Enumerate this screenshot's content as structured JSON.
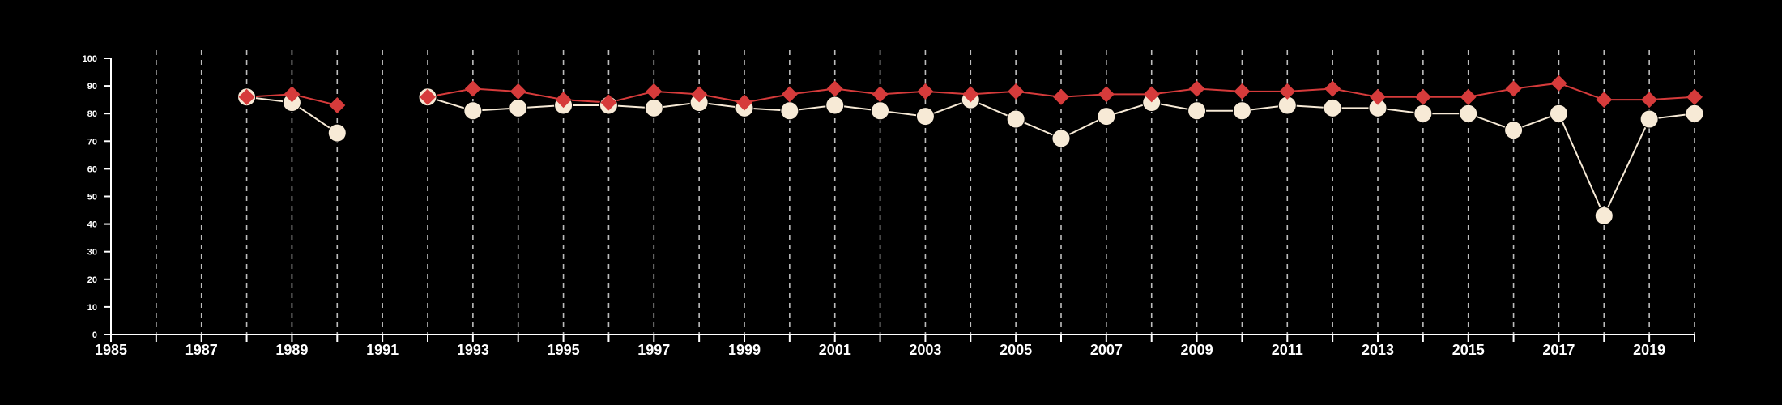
{
  "chart_data": {
    "type": "line",
    "xlim": [
      1985,
      2020
    ],
    "ylim": [
      0,
      100
    ],
    "x_tick_labels": [
      "1985",
      "1987",
      "1989",
      "1991",
      "1993",
      "1995",
      "1997",
      "1999",
      "2001",
      "2003",
      "2005",
      "2007",
      "2009",
      "2011",
      "2013",
      "2015",
      "2017",
      "2019"
    ],
    "y_tick_labels": [
      "0",
      "10",
      "20",
      "30",
      "40",
      "50",
      "60",
      "70",
      "80",
      "90",
      "100"
    ],
    "grid": "vertical dashed lines at each year",
    "legend": "none",
    "colors": {
      "background": "#000000",
      "axis": "#ffffff",
      "grid": "#bdbdbd",
      "series_red": "#d63b3b",
      "series_cream": "#f7ead6"
    },
    "series": [
      {
        "marker": "diamond",
        "color": "#d63b3b",
        "x": [
          1988,
          1989,
          1990,
          1992,
          1993,
          1994,
          1995,
          1996,
          1997,
          1998,
          1999,
          2000,
          2001,
          2002,
          2003,
          2004,
          2005,
          2006,
          2007,
          2008,
          2009,
          2010,
          2011,
          2012,
          2013,
          2014,
          2015,
          2016,
          2017,
          2018,
          2019,
          2020
        ],
        "y": [
          86,
          87,
          83,
          86,
          89,
          88,
          85,
          84,
          88,
          87,
          84,
          87,
          89,
          87,
          88,
          87,
          88,
          86,
          87,
          87,
          89,
          88,
          88,
          89,
          86,
          86,
          86,
          89,
          91,
          85,
          85,
          86
        ]
      },
      {
        "marker": "circle",
        "color": "#f7ead6",
        "x": [
          1988,
          1989,
          1990,
          1992,
          1993,
          1994,
          1995,
          1996,
          1997,
          1998,
          1999,
          2000,
          2001,
          2002,
          2003,
          2004,
          2005,
          2006,
          2007,
          2008,
          2009,
          2010,
          2011,
          2012,
          2013,
          2014,
          2015,
          2016,
          2017,
          2018,
          2019,
          2020
        ],
        "y": [
          86,
          84,
          73,
          86,
          81,
          82,
          83,
          83,
          82,
          84,
          82,
          81,
          83,
          81,
          79,
          85,
          78,
          71,
          79,
          84,
          81,
          81,
          83,
          82,
          82,
          80,
          80,
          74,
          80,
          43,
          78,
          80
        ]
      }
    ]
  }
}
